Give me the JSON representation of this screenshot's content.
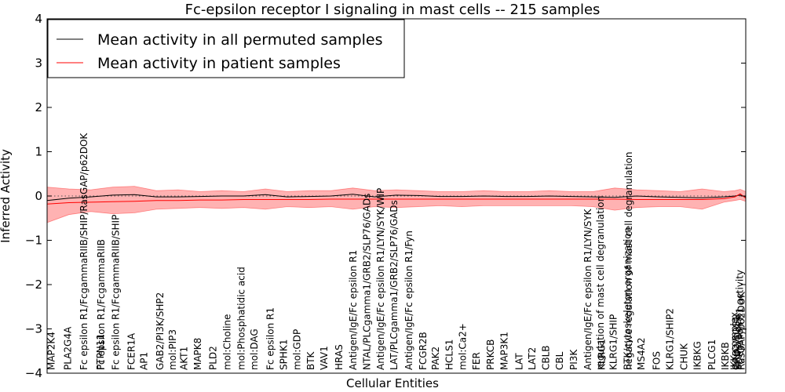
{
  "chart_data": {
    "type": "line",
    "title": "Fc-epsilon receptor I signaling in mast cells -- 215 samples",
    "xlabel": "Cellular Entities",
    "ylabel": "Inferred Activity",
    "ylim": [
      -4,
      4
    ],
    "yticks": [
      -4,
      -3,
      -2,
      -1,
      0,
      1,
      2,
      3,
      4
    ],
    "ytick_labels": [
      "−4",
      "−3",
      "−2",
      "−1",
      "0",
      "1",
      "2",
      "3",
      "4"
    ],
    "xlim": [
      0,
      128
    ],
    "zero_line": true,
    "legend": {
      "position": "top-left",
      "entries": [
        {
          "label": "Mean activity in all permuted samples",
          "color": "#000000"
        },
        {
          "label": "Mean activity in patient samples",
          "color": "#ff0000"
        }
      ]
    },
    "x_labels": [
      {
        "x": 0.5,
        "text": "MAP2K4"
      },
      {
        "x": 3.5,
        "text": "PLA2G4A"
      },
      {
        "x": 6.5,
        "text": "Fc epsilon R1/FcgammaRIIB/SHIP/RasGAP/p62DOK"
      },
      {
        "x": 9.5,
        "text": "PTPN11"
      },
      {
        "x": 9.6,
        "text": "Fc epsilon R1/FcgammaRIIB"
      },
      {
        "x": 12.3,
        "text": "Fc epsilon R1/FcgammaRIIB/SHIP"
      },
      {
        "x": 15.2,
        "text": "FCER1A"
      },
      {
        "x": 17.5,
        "text": "AP1"
      },
      {
        "x": 20.4,
        "text": "GAB2/PI3K/SHP2"
      },
      {
        "x": 22.7,
        "text": "mol:PIP3"
      },
      {
        "x": 24.8,
        "text": "AKT1"
      },
      {
        "x": 27.3,
        "text": "MAPK8"
      },
      {
        "x": 30.1,
        "text": "PLD2"
      },
      {
        "x": 32.7,
        "text": "mol:Choline"
      },
      {
        "x": 35.3,
        "text": "mol:Phosphatidic acid"
      },
      {
        "x": 37.7,
        "text": "mol:DAG"
      },
      {
        "x": 40.6,
        "text": "Fc epsilon R1"
      },
      {
        "x": 43.1,
        "text": "SPHK1"
      },
      {
        "x": 45.5,
        "text": "mol:GDP"
      },
      {
        "x": 48.0,
        "text": "BTK"
      },
      {
        "x": 50.5,
        "text": "VAV1"
      },
      {
        "x": 53.2,
        "text": "HRAS"
      },
      {
        "x": 55.8,
        "text": "Antigen/IgE/Fc epsilon R1"
      },
      {
        "x": 58.3,
        "text": "NTAL/PLCgamma1/GRB2/SLP76/GADs"
      },
      {
        "x": 60.8,
        "text": "Antigen/IgE/Fc epsilon R1/LYN/SYK/WIP"
      },
      {
        "x": 63.3,
        "text": "LAT/PLCgamma1/GRB2/SLP76/GADs"
      },
      {
        "x": 66.0,
        "text": "Antigen/IgE/Fc epsilon R1/Fyn"
      },
      {
        "x": 68.6,
        "text": "FCGR2B"
      },
      {
        "x": 70.9,
        "text": "PAK2"
      },
      {
        "x": 73.4,
        "text": "HCLS1"
      },
      {
        "x": 75.9,
        "text": "mol:Ca2+"
      },
      {
        "x": 78.4,
        "text": "FER"
      },
      {
        "x": 81.0,
        "text": "PRKCB"
      },
      {
        "x": 83.5,
        "text": "MAP3K1"
      },
      {
        "x": 86.2,
        "text": "LAT"
      },
      {
        "x": 88.6,
        "text": "LAT2"
      },
      {
        "x": 91.1,
        "text": "CBLB"
      },
      {
        "x": 93.6,
        "text": "CBL"
      },
      {
        "x": 96.2,
        "text": "PI3K"
      },
      {
        "x": 98.8,
        "text": "Antigen/IgE/Fc epsilon R1/LYN/SYK"
      },
      {
        "x": 101.1,
        "text": "regulation of mast cell degranulation"
      },
      {
        "x": 101.3,
        "text": "KLRG1"
      },
      {
        "x": 103.5,
        "text": "KLRG1/SHIP"
      },
      {
        "x": 106.1,
        "text": "BTK/cytoskeleton organization"
      },
      {
        "x": 106.3,
        "text": "negative regulation of mast cell degranulation"
      },
      {
        "x": 108.6,
        "text": "MS4A2"
      },
      {
        "x": 111.4,
        "text": "FOS"
      },
      {
        "x": 113.8,
        "text": "KLRG1/SHIP2"
      },
      {
        "x": 116.4,
        "text": "CHUK"
      },
      {
        "x": 118.9,
        "text": "IKBKG"
      },
      {
        "x": 121.5,
        "text": "PLCG1"
      },
      {
        "x": 124.0,
        "text": "IKBKB"
      },
      {
        "x": 125.6,
        "text": "IKK complex"
      },
      {
        "x": 126.0,
        "text": "GRB2/SOS1"
      },
      {
        "x": 126.3,
        "text": "SHIP2/Dock"
      },
      {
        "x": 126.6,
        "text": "Fc epsilon R1 activity"
      },
      {
        "x": 126.9,
        "text": "RasGAP/p62DOK"
      }
    ],
    "series": [
      {
        "name": "Mean activity in all permuted samples",
        "color": "#000000",
        "x": [
          0,
          4,
          8,
          12,
          16,
          20,
          24,
          28,
          32,
          36,
          40,
          44,
          48,
          52,
          56,
          60,
          64,
          68,
          72,
          76,
          80,
          84,
          88,
          92,
          96,
          100,
          104,
          108,
          112,
          116,
          120,
          124,
          126,
          127,
          128
        ],
        "y": [
          -0.1,
          -0.05,
          -0.02,
          0.02,
          0.03,
          -0.02,
          -0.02,
          -0.01,
          0.0,
          0.0,
          0.03,
          -0.02,
          -0.01,
          0.0,
          0.04,
          -0.02,
          0.02,
          0.01,
          -0.01,
          -0.01,
          0.0,
          -0.01,
          -0.01,
          0.0,
          -0.01,
          -0.02,
          -0.03,
          0.0,
          -0.02,
          -0.03,
          -0.04,
          -0.02,
          0.0,
          0.02,
          -0.02
        ]
      },
      {
        "name": "Mean activity in patient samples",
        "color": "#ff0000",
        "x": [
          0,
          4,
          8,
          12,
          16,
          20,
          24,
          28,
          32,
          36,
          40,
          44,
          48,
          52,
          56,
          60,
          64,
          68,
          72,
          76,
          80,
          84,
          88,
          92,
          96,
          100,
          104,
          108,
          112,
          116,
          120,
          124,
          126,
          127,
          128
        ],
        "y": [
          -0.18,
          -0.15,
          -0.14,
          -0.13,
          -0.12,
          -0.1,
          -0.1,
          -0.09,
          -0.09,
          -0.08,
          -0.08,
          -0.08,
          -0.08,
          -0.07,
          -0.07,
          -0.07,
          -0.07,
          -0.07,
          -0.07,
          -0.07,
          -0.07,
          -0.07,
          -0.07,
          -0.07,
          -0.07,
          -0.07,
          -0.07,
          -0.08,
          -0.08,
          -0.08,
          -0.08,
          -0.06,
          -0.02,
          0.05,
          -0.05
        ]
      }
    ],
    "band": {
      "color": "#ff0000",
      "x": [
        0,
        4,
        8,
        12,
        16,
        20,
        24,
        28,
        32,
        36,
        40,
        44,
        48,
        52,
        56,
        60,
        64,
        68,
        72,
        76,
        80,
        84,
        88,
        92,
        96,
        100,
        104,
        108,
        112,
        116,
        120,
        124,
        126,
        127,
        128
      ],
      "upper": [
        0.2,
        0.16,
        0.14,
        0.2,
        0.22,
        0.12,
        0.14,
        0.1,
        0.12,
        0.1,
        0.16,
        0.1,
        0.12,
        0.12,
        0.18,
        0.12,
        0.14,
        0.12,
        0.1,
        0.1,
        0.12,
        0.1,
        0.1,
        0.12,
        0.1,
        0.1,
        0.18,
        0.14,
        0.12,
        0.1,
        0.16,
        0.1,
        0.12,
        0.15,
        0.1
      ],
      "lower": [
        -0.6,
        -0.42,
        -0.35,
        -0.4,
        -0.38,
        -0.3,
        -0.28,
        -0.26,
        -0.28,
        -0.26,
        -0.3,
        -0.24,
        -0.26,
        -0.24,
        -0.3,
        -0.24,
        -0.26,
        -0.24,
        -0.22,
        -0.24,
        -0.22,
        -0.22,
        -0.22,
        -0.22,
        -0.22,
        -0.24,
        -0.32,
        -0.26,
        -0.24,
        -0.24,
        -0.3,
        -0.14,
        -0.1,
        -0.08,
        -0.12
      ]
    }
  }
}
